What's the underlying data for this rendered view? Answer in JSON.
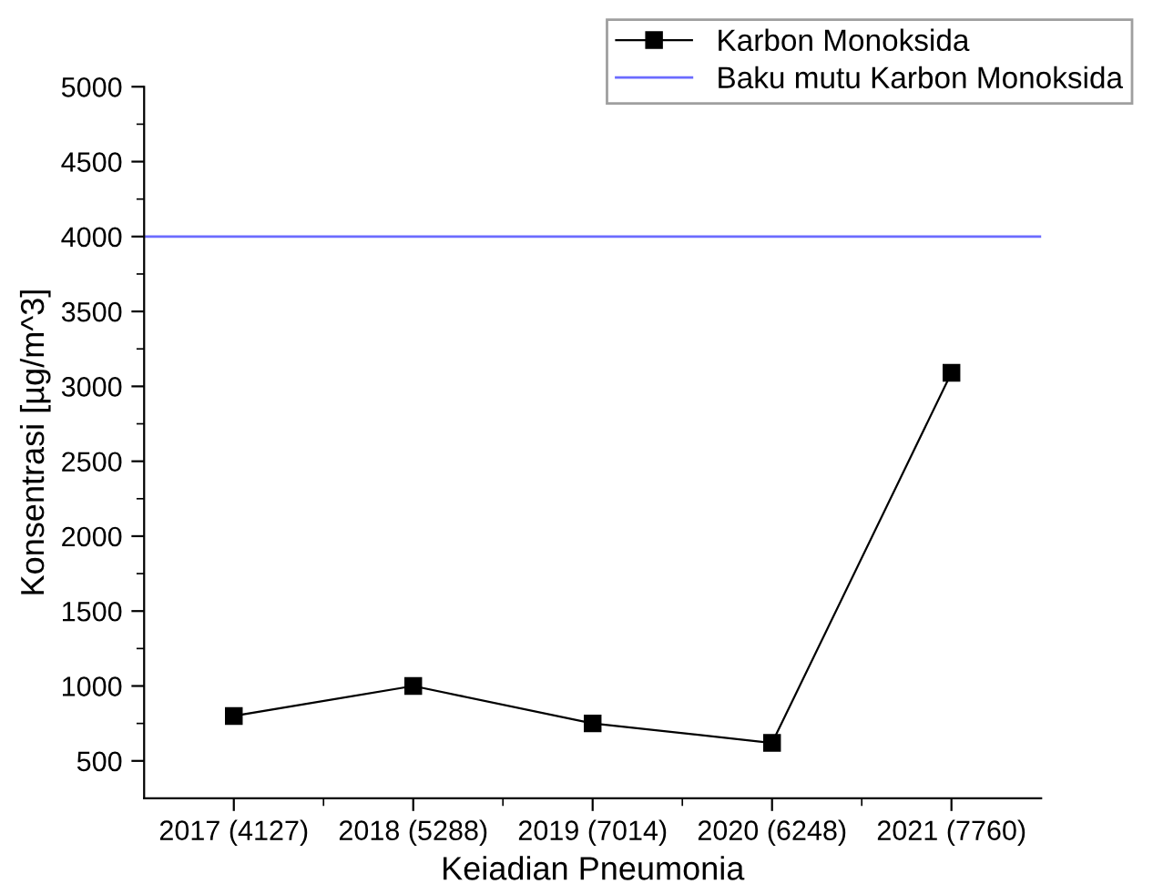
{
  "chart_data": {
    "type": "line",
    "xlabel": "Keiadian Pneumonia",
    "ylabel": "Konsentrasi [µg/m^3]",
    "categories": [
      "2017 (4127)",
      "2018 (5288)",
      "2019 (7014)",
      "2020 (6248)",
      "2021 (7760)"
    ],
    "series": [
      {
        "name": "Karbon Monoksida",
        "color": "#000000",
        "values": [
          800,
          1000,
          750,
          620,
          3090
        ]
      }
    ],
    "ref_lines": [
      {
        "axis": "y",
        "value": 4000,
        "label": "Baku mutu Karbon Monoksida",
        "color": "#6b6bff",
        "line_style": "solid"
      }
    ],
    "ylim": [
      250,
      5000
    ],
    "yticks": [
      500,
      {
        "value": 750,
        "label": null
      },
      1000,
      {
        "value": 1250,
        "label": null
      },
      1500,
      {
        "value": 1750,
        "label": null
      },
      2000,
      {
        "value": 2250,
        "label": null
      },
      2500,
      {
        "value": 2750,
        "label": null
      },
      3000,
      {
        "value": 3250,
        "label": null
      },
      3500,
      {
        "value": 3750,
        "label": null
      },
      4000,
      {
        "value": 4250,
        "label": null
      },
      4500,
      {
        "value": 4750,
        "label": null
      },
      5000
    ],
    "marker": "square",
    "line_style": "solid",
    "legend": "top right",
    "grid": false
  }
}
